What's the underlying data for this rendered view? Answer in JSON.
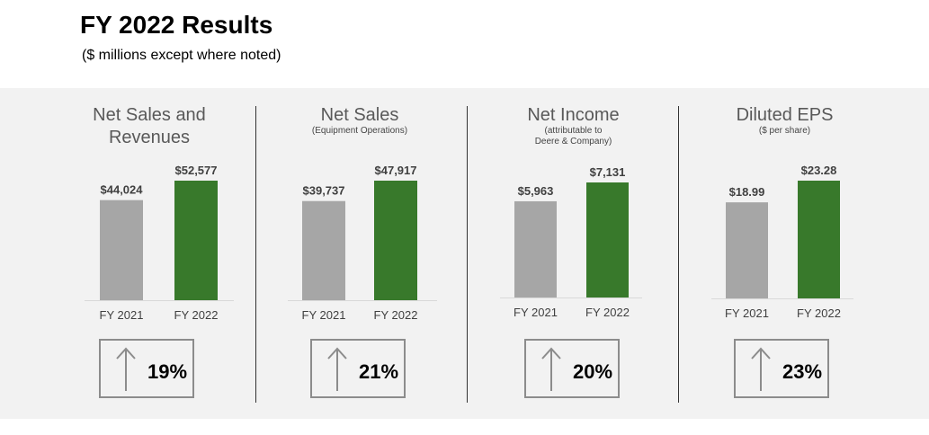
{
  "header": {
    "title": "FY 2022 Results",
    "subtitle": "($ millions except where noted)"
  },
  "colors": {
    "prior": "#a6a6a6",
    "current": "#38792b",
    "band": "#f2f2f2",
    "title_text": "#595959"
  },
  "icons": {
    "change": "up-arrow-icon"
  },
  "chart_data": [
    {
      "type": "bar",
      "title": "Net Sales and Revenues",
      "subtitle": "",
      "categories": [
        "FY 2021",
        "FY 2022"
      ],
      "values": [
        44024,
        52577
      ],
      "data_labels": [
        "$44,024",
        "$52,577"
      ],
      "change": "19%"
    },
    {
      "type": "bar",
      "title": "Net Sales",
      "subtitle": "(Equipment Operations)",
      "categories": [
        "FY 2021",
        "FY 2022"
      ],
      "values": [
        39737,
        47917
      ],
      "data_labels": [
        "$39,737",
        "$47,917"
      ],
      "change": "21%"
    },
    {
      "type": "bar",
      "title": "Net Income",
      "subtitle": "(attributable to\nDeere & Company)",
      "categories": [
        "FY 2021",
        "FY 2022"
      ],
      "values": [
        5963,
        7131
      ],
      "data_labels": [
        "$5,963",
        "$7,131"
      ],
      "change": "20%"
    },
    {
      "type": "bar",
      "title": "Diluted EPS",
      "subtitle": "($ per share)",
      "categories": [
        "FY 2021",
        "FY 2022"
      ],
      "values": [
        18.99,
        23.28
      ],
      "data_labels": [
        "$18.99",
        "$23.28"
      ],
      "change": "23%"
    }
  ]
}
